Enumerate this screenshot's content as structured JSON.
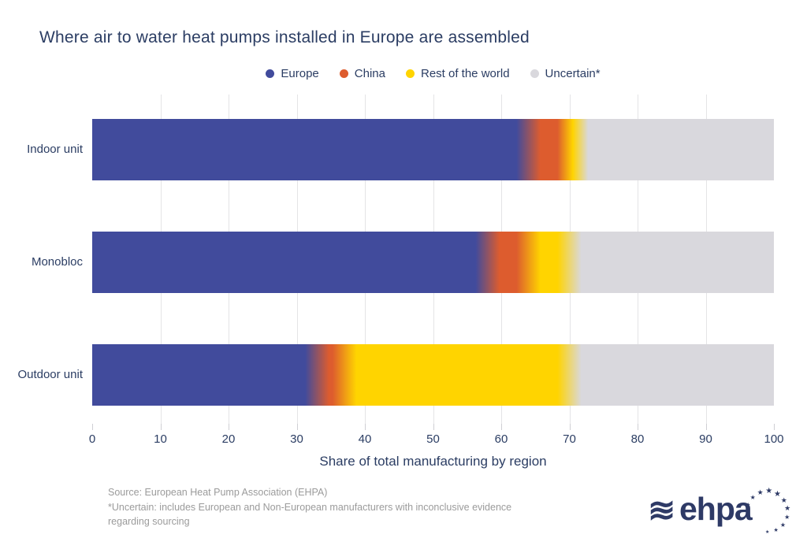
{
  "title": "Where air to water heat pumps installed in Europe are assembled",
  "legend": [
    {
      "label": "Europe",
      "color": "#414b9c"
    },
    {
      "label": "China",
      "color": "#dd5c2e"
    },
    {
      "label": "Rest of the world",
      "color": "#ffd400"
    },
    {
      "label": "Uncertain*",
      "color": "#d9d8dd"
    }
  ],
  "chart_data": {
    "type": "bar",
    "orientation": "horizontal-stacked",
    "title": "Where air to water heat pumps installed in Europe are assembled",
    "categories": [
      "Indoor unit",
      "Monobloc",
      "Outdoor unit"
    ],
    "series": [
      {
        "name": "Europe",
        "color": "#414b9c",
        "values": [
          64,
          58,
          33
        ]
      },
      {
        "name": "China",
        "color": "#dd5c2e",
        "values": [
          6,
          6,
          4
        ]
      },
      {
        "name": "Rest of the world",
        "color": "#ffd400",
        "values": [
          1,
          6,
          33
        ]
      },
      {
        "name": "Uncertain*",
        "color": "#d9d8dd",
        "values": [
          29,
          30,
          30
        ]
      }
    ],
    "xlabel": "Share of total manufacturing by region",
    "xlim": [
      0,
      100
    ],
    "xticks": [
      0,
      10,
      20,
      30,
      40,
      50,
      60,
      70,
      80,
      90,
      100
    ],
    "grid": true,
    "legend_position": "top",
    "segment_blend_pct": 1.75
  },
  "footer": {
    "source": "Source: European Heat Pump Association (EHPA)",
    "note_line1": "*Uncertain: includes European and Non-European manufacturers with inconclusive evidence",
    "note_line2": "regarding sourcing"
  },
  "logo": {
    "wave": "≋",
    "text": "ehpa",
    "star": "★"
  }
}
